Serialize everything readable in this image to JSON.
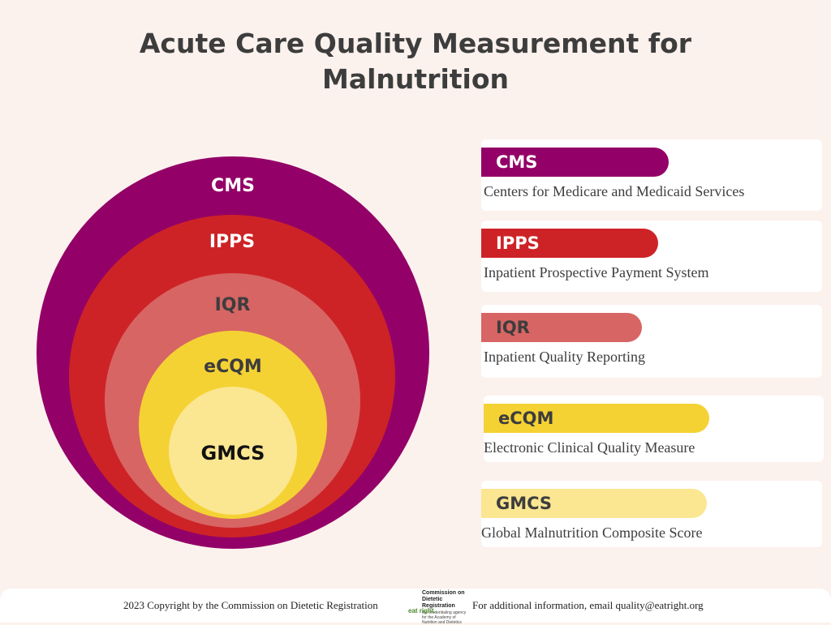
{
  "title": "Acute Care Quality Measurement for Malnutrition",
  "colors": {
    "cms": "#930067",
    "ipps": "#cd2327",
    "iqr": "#d76564",
    "ecqm": "#f5d233",
    "gmcs": "#fbe691"
  },
  "circles": [
    {
      "label": "CMS"
    },
    {
      "label": "IPPS"
    },
    {
      "label": "IQR"
    },
    {
      "label": "eCQM"
    },
    {
      "label": "GMCS"
    }
  ],
  "legend": [
    {
      "abbr": "CMS",
      "full": "Centers for Medicare and Medicaid Services"
    },
    {
      "abbr": "IPPS",
      "full": "Inpatient Prospective Payment System"
    },
    {
      "abbr": "IQR",
      "full": "Inpatient Quality Reporting"
    },
    {
      "abbr": "eCQM",
      "full": "Electronic Clinical Quality Measure"
    },
    {
      "abbr": "GMCS",
      "full": "Global Malnutrition Composite Score"
    }
  ],
  "footer": {
    "copyright": "2023 Copyright by the Commission on Dietetic Registration",
    "contact": "For additional information, email quality@eatright.org",
    "logo_title": "Commission on Dietetic Registration",
    "logo_subtitle": "the credentialing agency for the Academy of Nutrition and Dietetics",
    "logo_mark": "eat right."
  }
}
